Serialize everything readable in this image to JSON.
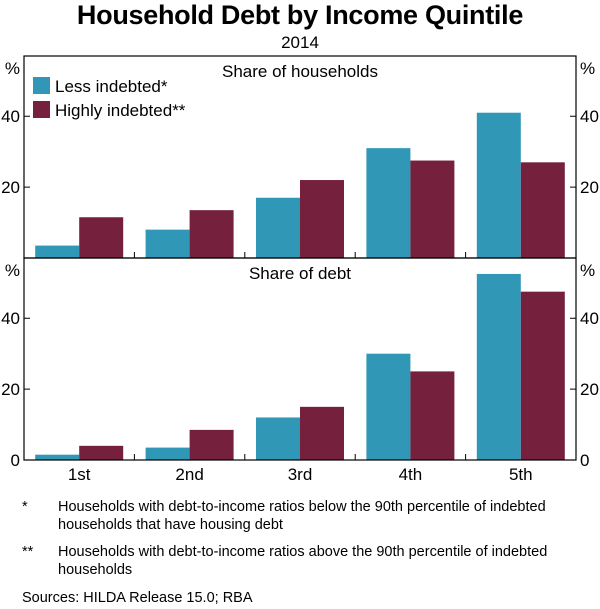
{
  "title": "Household Debt by Income Quintile",
  "subtitle": "2014",
  "colors": {
    "less": "#3197b6",
    "highly": "#75203c",
    "axis": "#000000"
  },
  "chart_data": [
    {
      "type": "bar",
      "title": "Share of households",
      "unit": "%",
      "categories": [
        "1st",
        "2nd",
        "3rd",
        "4th",
        "5th"
      ],
      "series": [
        {
          "name": "Less indebted*",
          "values": [
            3.5,
            8,
            17,
            31,
            41
          ]
        },
        {
          "name": "Highly indebted**",
          "values": [
            11.5,
            13.5,
            22,
            27.5,
            27
          ]
        }
      ],
      "ylim": [
        0,
        57
      ],
      "yticks": [
        20,
        40
      ],
      "grid": false,
      "legend": "top-left"
    },
    {
      "type": "bar",
      "title": "Share of debt",
      "unit": "%",
      "categories": [
        "1st",
        "2nd",
        "3rd",
        "4th",
        "5th"
      ],
      "series": [
        {
          "name": "Less indebted*",
          "values": [
            1.5,
            3.5,
            12,
            30,
            52.5
          ]
        },
        {
          "name": "Highly indebted**",
          "values": [
            4,
            8.5,
            15,
            25,
            47.5
          ]
        }
      ],
      "ylim": [
        0,
        57
      ],
      "yticks": [
        0,
        20,
        40
      ],
      "grid": false
    }
  ],
  "footnotes": [
    {
      "mark": "*",
      "text": "Households with debt-to-income ratios below the 90th percentile of indebted households that have housing debt"
    },
    {
      "mark": "**",
      "text": "Households with debt-to-income ratios above the 90th percentile of indebted households"
    }
  ],
  "sources": "Sources:   HILDA Release 15.0; RBA"
}
